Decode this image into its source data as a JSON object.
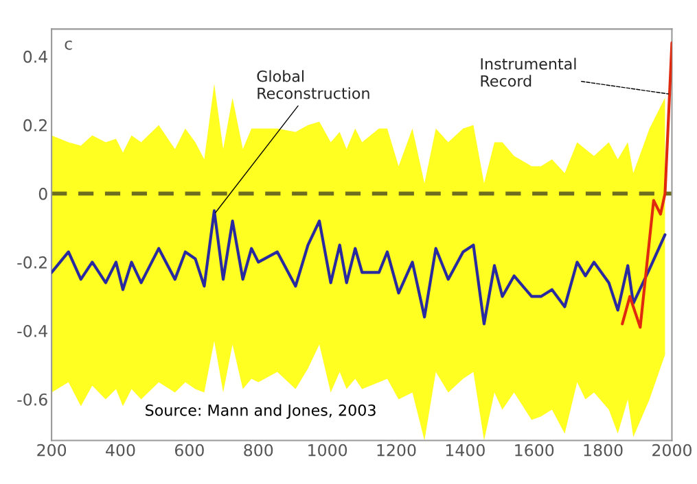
{
  "chart_data": {
    "type": "line",
    "xlim": [
      200,
      2000
    ],
    "xticks": [
      200,
      400,
      600,
      800,
      1000,
      1200,
      1400,
      1600,
      1800,
      2000
    ],
    "ylim": [
      -0.72,
      0.48
    ],
    "yticks": [
      -0.6,
      -0.4,
      -0.2,
      0,
      0.2,
      0.4
    ],
    "grid": false,
    "line_style": "solid",
    "series": [
      {
        "color": "#2a2aa0",
        "x": [
          200,
          249,
          285,
          318,
          357,
          387,
          407,
          432,
          460,
          511,
          558,
          588,
          617,
          643,
          672,
          698,
          725,
          755,
          780,
          800,
          855,
          908,
          944,
          977,
          1010,
          1036,
          1056,
          1081,
          1101,
          1150,
          1174,
          1207,
          1247,
          1282,
          1315,
          1351,
          1394,
          1424,
          1455,
          1485,
          1508,
          1542,
          1593,
          1620,
          1652,
          1689,
          1725,
          1749,
          1774,
          1817,
          1843,
          1872,
          1888,
          1935,
          1980
        ],
        "values": [
          -0.23,
          -0.17,
          -0.25,
          -0.2,
          -0.26,
          -0.2,
          -0.28,
          -0.2,
          -0.26,
          -0.16,
          -0.25,
          -0.17,
          -0.19,
          -0.27,
          -0.05,
          -0.25,
          -0.08,
          -0.25,
          -0.16,
          -0.2,
          -0.17,
          -0.27,
          -0.15,
          -0.08,
          -0.26,
          -0.15,
          -0.26,
          -0.16,
          -0.23,
          -0.23,
          -0.17,
          -0.29,
          -0.2,
          -0.36,
          -0.16,
          -0.25,
          -0.17,
          -0.15,
          -0.38,
          -0.21,
          -0.3,
          -0.24,
          -0.3,
          -0.3,
          -0.28,
          -0.33,
          -0.2,
          -0.24,
          -0.2,
          -0.26,
          -0.34,
          -0.21,
          -0.32,
          -0.22,
          -0.12
        ],
        "upper": [
          0.17,
          0.15,
          0.14,
          0.17,
          0.15,
          0.16,
          0.12,
          0.17,
          0.15,
          0.2,
          0.13,
          0.19,
          0.15,
          0.1,
          0.32,
          0.13,
          0.28,
          0.13,
          0.19,
          0.19,
          0.19,
          0.18,
          0.2,
          0.21,
          0.15,
          0.18,
          0.13,
          0.19,
          0.15,
          0.19,
          0.19,
          0.08,
          0.19,
          0.03,
          0.19,
          0.15,
          0.19,
          0.2,
          0.03,
          0.15,
          0.15,
          0.11,
          0.08,
          0.08,
          0.1,
          0.06,
          0.15,
          0.13,
          0.11,
          0.15,
          0.1,
          0.15,
          0.06,
          0.19,
          0.28
        ],
        "lower": [
          -0.58,
          -0.55,
          -0.62,
          -0.56,
          -0.6,
          -0.57,
          -0.62,
          -0.57,
          -0.6,
          -0.55,
          -0.58,
          -0.55,
          -0.57,
          -0.58,
          -0.43,
          -0.58,
          -0.44,
          -0.57,
          -0.54,
          -0.55,
          -0.52,
          -0.57,
          -0.51,
          -0.44,
          -0.58,
          -0.52,
          -0.57,
          -0.54,
          -0.57,
          -0.55,
          -0.54,
          -0.6,
          -0.58,
          -0.72,
          -0.52,
          -0.58,
          -0.54,
          -0.52,
          -0.72,
          -0.58,
          -0.63,
          -0.58,
          -0.66,
          -0.65,
          -0.63,
          -0.7,
          -0.55,
          -0.6,
          -0.58,
          -0.63,
          -0.7,
          -0.6,
          -0.71,
          -0.6,
          -0.47
        ]
      },
      {
        "color": "#e02a10",
        "x": [
          1856,
          1878,
          1908,
          1947,
          1967,
          1980,
          2000
        ],
        "values": [
          -0.38,
          -0.3,
          -0.39,
          -0.02,
          -0.06,
          0.0,
          0.44
        ]
      }
    ],
    "ref_lines": [
      {
        "axis": "y",
        "value": 0,
        "color": "#6e6e1e",
        "line_style": "dashed"
      }
    ],
    "annotations": [
      "c",
      {
        "text": "Global\nReconstruction",
        "x": 672,
        "y": -0.06
      },
      {
        "text": "Instrumental\nRecord",
        "x": 1995,
        "y": 0.29
      },
      "Source: Mann and Jones, 2003"
    ]
  }
}
